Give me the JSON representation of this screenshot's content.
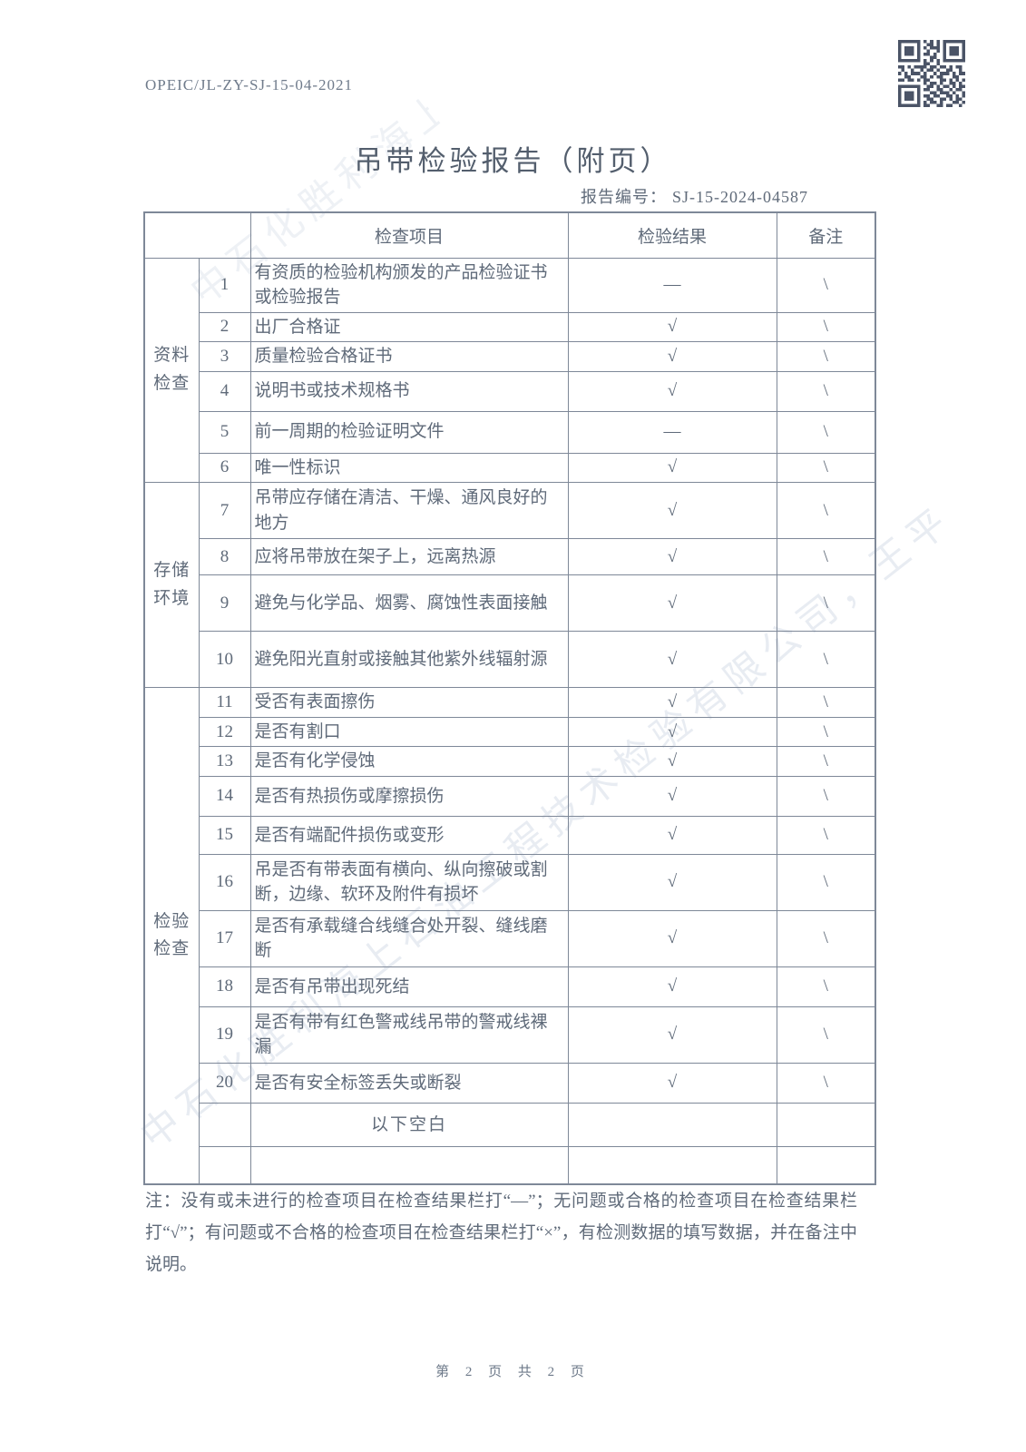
{
  "page": {
    "doc_code": "OPEIC/JL-ZY-SJ-15-04-2021",
    "title": "吊带检验报告（附页）",
    "report_no_label": "报告编号：",
    "report_no": "SJ-15-2024-04587",
    "footer_page": "第 2 页 共 2 页",
    "watermark": "中石化胜利海上石油工程技术检验有限公司，王平"
  },
  "table": {
    "headers": {
      "item": "检查项目",
      "result": "检验结果",
      "remark": "备注"
    },
    "blank_label": "以下空白",
    "sections": [
      {
        "category": "资料检查",
        "rows": [
          {
            "no": "1",
            "item": "有资质的检验机构颁发的产品检验证书或检验报告",
            "result": "—",
            "remark": "\\"
          },
          {
            "no": "2",
            "item": "出厂合格证",
            "result": "√",
            "remark": "\\"
          },
          {
            "no": "3",
            "item": "质量检验合格证书",
            "result": "√",
            "remark": "\\"
          },
          {
            "no": "4",
            "item": "说明书或技术规格书",
            "result": "√",
            "remark": "\\"
          },
          {
            "no": "5",
            "item": "前一周期的检验证明文件",
            "result": "—",
            "remark": "\\"
          },
          {
            "no": "6",
            "item": "唯一性标识",
            "result": "√",
            "remark": "\\"
          }
        ]
      },
      {
        "category": "存储环境",
        "rows": [
          {
            "no": "7",
            "item": "吊带应存储在清洁、干燥、通风良好的地方",
            "result": "√",
            "remark": "\\"
          },
          {
            "no": "8",
            "item": "应将吊带放在架子上，远离热源",
            "result": "√",
            "remark": "\\"
          },
          {
            "no": "9",
            "item": "避免与化学品、烟雾、腐蚀性表面接触",
            "result": "√",
            "remark": "\\"
          },
          {
            "no": "10",
            "item": "避免阳光直射或接触其他紫外线辐射源",
            "result": "√",
            "remark": "\\"
          }
        ]
      },
      {
        "category": "检验检查",
        "rows": [
          {
            "no": "11",
            "item": "受否有表面擦伤",
            "result": "√",
            "remark": "\\"
          },
          {
            "no": "12",
            "item": "是否有割口",
            "result": "√",
            "remark": "\\"
          },
          {
            "no": "13",
            "item": "是否有化学侵蚀",
            "result": "√",
            "remark": "\\"
          },
          {
            "no": "14",
            "item": "是否有热损伤或摩擦损伤",
            "result": "√",
            "remark": "\\"
          },
          {
            "no": "15",
            "item": "是否有端配件损伤或变形",
            "result": "√",
            "remark": "\\"
          },
          {
            "no": "16",
            "item": "吊是否有带表面有横向、纵向擦破或割断，边缘、软环及附件有损坏",
            "result": "√",
            "remark": "\\"
          },
          {
            "no": "17",
            "item": "是否有承载缝合线缝合处开裂、缝线磨断",
            "result": "√",
            "remark": "\\"
          },
          {
            "no": "18",
            "item": "是否有吊带出现死结",
            "result": "√",
            "remark": "\\"
          },
          {
            "no": "19",
            "item": "是否有带有红色警戒线吊带的警戒线裸漏",
            "result": "√",
            "remark": "\\"
          },
          {
            "no": "20",
            "item": "是否有安全标签丢失或断裂",
            "result": "√",
            "remark": "\\"
          }
        ]
      }
    ]
  },
  "note": {
    "text": "注：没有或未进行的检查项目在检查结果栏打“—”；无问题或合格的检查项目在检查结果栏打“√”；有问题或不合格的检查项目在检查结果栏打“×”，有检测数据的填写数据，并在备注中说明。"
  }
}
